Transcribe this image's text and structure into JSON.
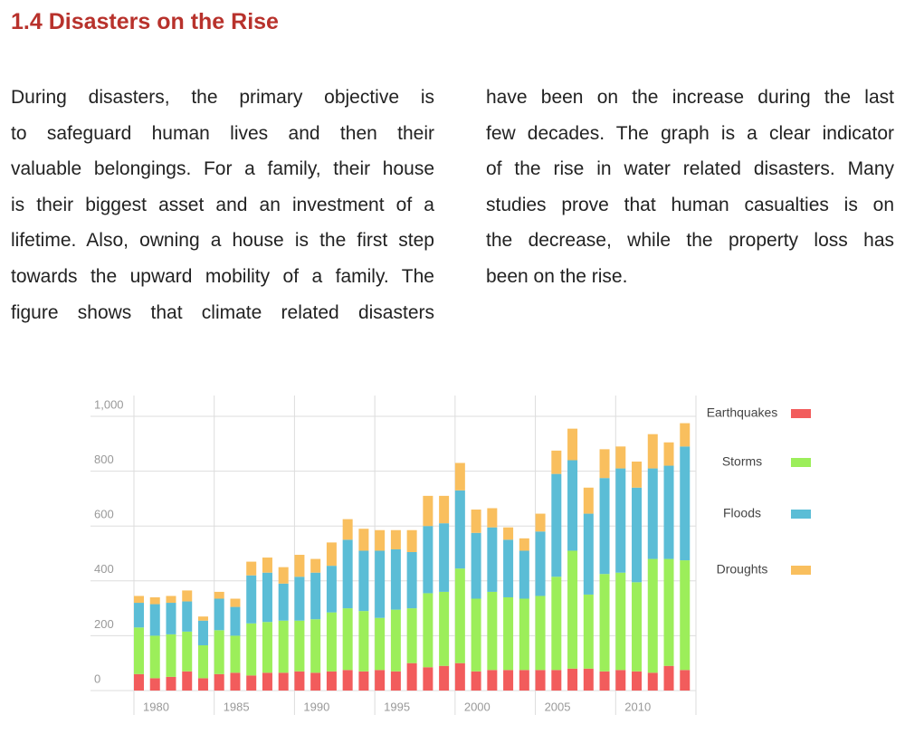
{
  "heading": "1.4 Disasters on the Rise",
  "columns": [
    [
      "During disasters, the primary objective is",
      "to safeguard human lives and then their",
      "valuable belongings. For a family, their house",
      "is their biggest asset and an investment of a",
      "lifetime. Also, owning a house is the first step",
      "towards the upward mobility of a family. The",
      "figure shows that climate related disasters"
    ],
    [
      "have been on the increase during the last",
      "few decades. The graph is a clear indicator",
      "of the rise in water related disasters. Many",
      "studies prove that human casualties is on",
      "the decrease, while the property loss has",
      "been on the rise."
    ]
  ],
  "chart_data": {
    "type": "stacked_bar",
    "x": [
      1980,
      1981,
      1982,
      1983,
      1984,
      1985,
      1986,
      1987,
      1988,
      1989,
      1990,
      1991,
      1992,
      1993,
      1994,
      1995,
      1996,
      1997,
      1998,
      1999,
      2000,
      2001,
      2002,
      2003,
      2004,
      2005,
      2006,
      2007,
      2008,
      2009,
      2010,
      2011,
      2012,
      2013,
      2014
    ],
    "series": [
      {
        "name": "Earthquakes",
        "color": "#f25c5c",
        "values": [
          60,
          45,
          50,
          70,
          45,
          60,
          65,
          55,
          65,
          65,
          70,
          65,
          70,
          75,
          70,
          75,
          70,
          100,
          85,
          90,
          100,
          70,
          75,
          75,
          75,
          75,
          75,
          80,
          80,
          70,
          75,
          70,
          65,
          90,
          75
        ]
      },
      {
        "name": "Storms",
        "color": "#9cee5a",
        "values": [
          170,
          155,
          155,
          145,
          120,
          160,
          135,
          190,
          185,
          190,
          185,
          195,
          215,
          225,
          220,
          190,
          225,
          200,
          270,
          270,
          345,
          265,
          285,
          265,
          260,
          270,
          340,
          430,
          270,
          355,
          355,
          325,
          415,
          390,
          400
        ]
      },
      {
        "name": "Floods",
        "color": "#5bbdd6",
        "values": [
          90,
          115,
          115,
          110,
          90,
          115,
          105,
          175,
          180,
          135,
          160,
          170,
          170,
          250,
          220,
          245,
          220,
          205,
          245,
          250,
          285,
          240,
          235,
          210,
          175,
          235,
          375,
          330,
          295,
          350,
          380,
          345,
          330,
          340,
          415
        ]
      },
      {
        "name": "Droughts",
        "color": "#f9bf5e",
        "values": [
          25,
          25,
          25,
          40,
          15,
          25,
          30,
          50,
          55,
          60,
          80,
          50,
          85,
          75,
          80,
          75,
          70,
          80,
          110,
          100,
          100,
          85,
          70,
          45,
          45,
          65,
          85,
          115,
          95,
          105,
          80,
          95,
          125,
          85,
          85
        ]
      }
    ],
    "xlim": [
      1980,
      2015
    ],
    "xticks": [
      1980,
      1985,
      1990,
      1995,
      2000,
      2005,
      2010,
      2015
    ],
    "ylim": [
      0,
      1000
    ],
    "yticks": [
      0,
      200,
      400,
      600,
      800,
      {
        "value": 1000,
        "label": "1,000"
      }
    ],
    "grid": true,
    "legend": "right"
  }
}
